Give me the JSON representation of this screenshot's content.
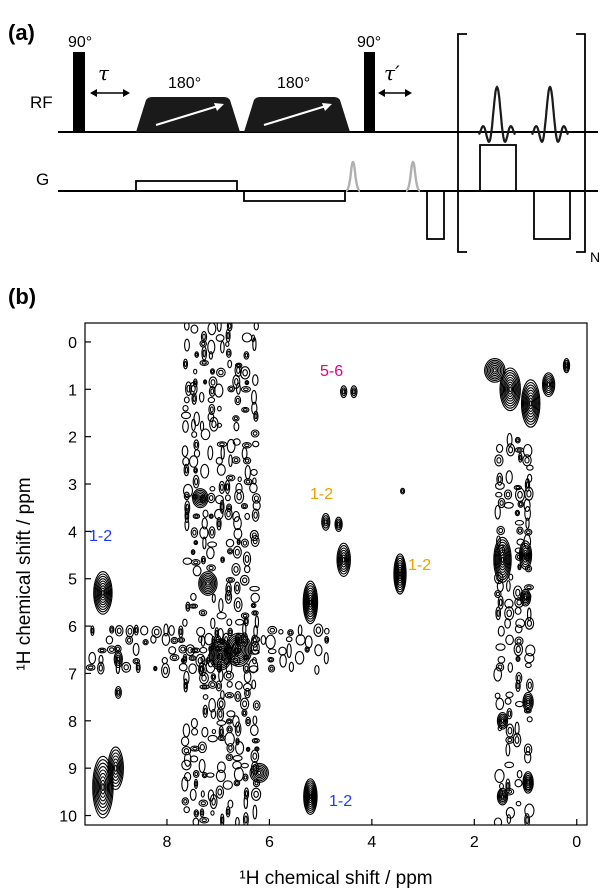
{
  "panel_a": {
    "label": "(a)",
    "pulse_90_first": "90°",
    "pulse_90_second": "90°",
    "tau": "τ",
    "tau_prime": "τ′",
    "rf_label": "RF",
    "g_label": "G",
    "adiabatic_1": "180°",
    "adiabatic_2": "180°",
    "bracket_suffix": "N"
  },
  "panel_b": {
    "label": "(b)",
    "annotations": [
      {
        "text": "5-6",
        "color": "#e6007e"
      },
      {
        "text": "1-2",
        "color": "#f0a000"
      },
      {
        "text": "1-2",
        "color": "#f0a000"
      },
      {
        "text": "1-2",
        "color": "#1a3cff"
      },
      {
        "text": "1-2",
        "color": "#1a3cff"
      }
    ]
  },
  "chart_data": {
    "type": "contour",
    "xlabel": "¹H chemical shift / ppm",
    "ylabel": "¹H chemical shift / ppm",
    "xlim": [
      9.6,
      -0.2
    ],
    "ylim": [
      10.2,
      -0.4
    ],
    "xticks": [
      8,
      6,
      4,
      2,
      0
    ],
    "yticks": [
      0,
      1,
      2,
      3,
      4,
      5,
      6,
      7,
      8,
      9,
      10
    ],
    "peaks": [
      {
        "x": 9.25,
        "y": 5.3,
        "w": 0.18,
        "h": 0.9,
        "rings": 9
      },
      {
        "x": 9.25,
        "y": 9.4,
        "w": 0.2,
        "h": 1.3,
        "rings": 9
      },
      {
        "x": 9.0,
        "y": 9.0,
        "w": 0.15,
        "h": 0.9,
        "rings": 7
      },
      {
        "x": 8.95,
        "y": 6.7,
        "w": 0.08,
        "h": 0.35,
        "rings": 4
      },
      {
        "x": 8.95,
        "y": 7.4,
        "w": 0.06,
        "h": 0.25,
        "rings": 3
      },
      {
        "x": 5.2,
        "y": 5.5,
        "w": 0.14,
        "h": 0.9,
        "rings": 9
      },
      {
        "x": 5.2,
        "y": 9.6,
        "w": 0.13,
        "h": 0.75,
        "rings": 9
      },
      {
        "x": 4.9,
        "y": 3.8,
        "w": 0.08,
        "h": 0.35,
        "rings": 4
      },
      {
        "x": 4.65,
        "y": 3.85,
        "w": 0.07,
        "h": 0.3,
        "rings": 4
      },
      {
        "x": 4.55,
        "y": 4.6,
        "w": 0.13,
        "h": 0.7,
        "rings": 7
      },
      {
        "x": 4.55,
        "y": 1.05,
        "w": 0.06,
        "h": 0.25,
        "rings": 3
      },
      {
        "x": 4.35,
        "y": 1.05,
        "w": 0.06,
        "h": 0.25,
        "rings": 3
      },
      {
        "x": 3.45,
        "y": 4.9,
        "w": 0.12,
        "h": 0.85,
        "rings": 9
      },
      {
        "x": 3.4,
        "y": 3.15,
        "w": 0.04,
        "h": 0.12,
        "rings": 2
      },
      {
        "x": 6.6,
        "y": 6.5,
        "w": 0.25,
        "h": 0.7,
        "rings": 9
      },
      {
        "x": 6.95,
        "y": 6.6,
        "w": 0.22,
        "h": 0.65,
        "rings": 9
      },
      {
        "x": 7.2,
        "y": 5.1,
        "w": 0.18,
        "h": 0.5,
        "rings": 7
      },
      {
        "x": 7.35,
        "y": 3.3,
        "w": 0.15,
        "h": 0.4,
        "rings": 6
      },
      {
        "x": 6.2,
        "y": 9.1,
        "w": 0.18,
        "h": 0.4,
        "rings": 6
      },
      {
        "x": 1.45,
        "y": 4.6,
        "w": 0.17,
        "h": 0.95,
        "rings": 9
      },
      {
        "x": 1.3,
        "y": 1.0,
        "w": 0.2,
        "h": 0.9,
        "rings": 9
      },
      {
        "x": 0.9,
        "y": 1.3,
        "w": 0.18,
        "h": 1.0,
        "rings": 9
      },
      {
        "x": 1.6,
        "y": 0.6,
        "w": 0.2,
        "h": 0.5,
        "rings": 7
      },
      {
        "x": 0.55,
        "y": 0.9,
        "w": 0.12,
        "h": 0.5,
        "rings": 6
      },
      {
        "x": 0.2,
        "y": 0.5,
        "w": 0.06,
        "h": 0.3,
        "rings": 4
      },
      {
        "x": 1.0,
        "y": 4.5,
        "w": 0.12,
        "h": 0.6,
        "rings": 6
      },
      {
        "x": 1.0,
        "y": 5.4,
        "w": 0.1,
        "h": 0.35,
        "rings": 5
      },
      {
        "x": 0.95,
        "y": 7.6,
        "w": 0.1,
        "h": 0.4,
        "rings": 5
      },
      {
        "x": 0.95,
        "y": 9.3,
        "w": 0.1,
        "h": 0.45,
        "rings": 6
      },
      {
        "x": 1.45,
        "y": 8.0,
        "w": 0.1,
        "h": 0.35,
        "rings": 5
      },
      {
        "x": 1.45,
        "y": 9.6,
        "w": 0.1,
        "h": 0.35,
        "rings": 5
      }
    ],
    "bands": [
      {
        "x_from": 7.7,
        "x_to": 6.2,
        "y_from": -0.4,
        "y_to": 10.2
      },
      {
        "x_from": 1.6,
        "x_to": 0.85,
        "y_from": 2.0,
        "y_to": 10.2
      },
      {
        "x_from": 9.55,
        "x_to": 4.8,
        "y_from": 6.0,
        "y_to": 7.0
      }
    ]
  }
}
